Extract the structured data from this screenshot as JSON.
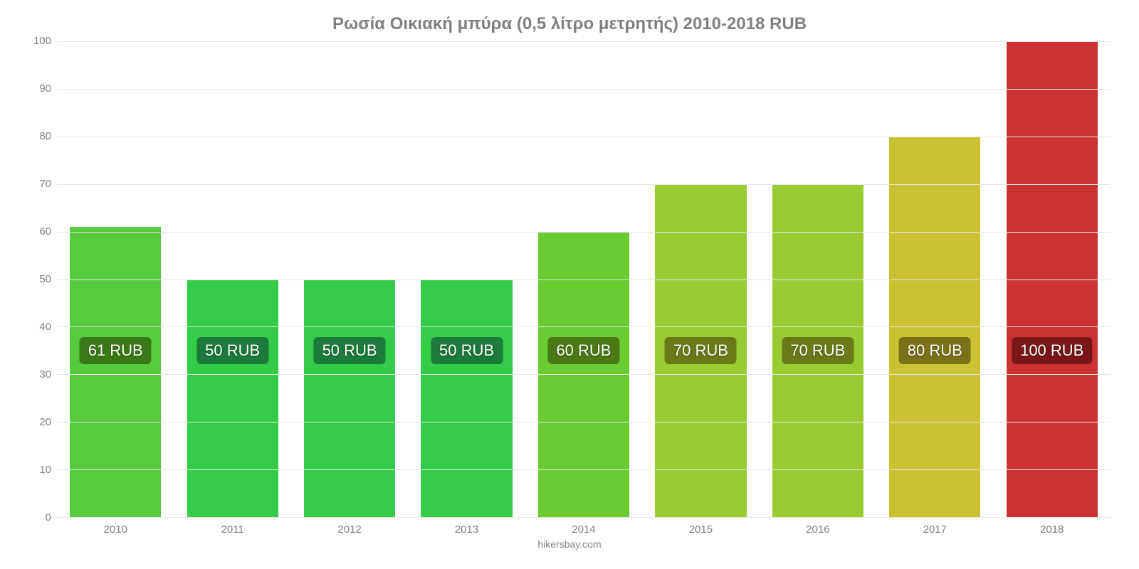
{
  "chart": {
    "type": "bar",
    "title": "Ρωσία Οικιακή μπύρα (0,5 λίτρο μετρητής) 2010-2018 RUB",
    "title_fontsize": 24,
    "title_color": "#808080",
    "footer": "hikersbay.com",
    "footer_fontsize": 14,
    "footer_color": "#808080",
    "background_color": "#ffffff",
    "grid_color": "#e6e6e6",
    "axis_label_color": "#808080",
    "axis_label_fontsize": 15,
    "ylim": [
      0,
      100
    ],
    "ytick_step": 10,
    "yticks": [
      "0",
      "10",
      "20",
      "30",
      "40",
      "50",
      "60",
      "70",
      "80",
      "90",
      "100"
    ],
    "categories": [
      "2010",
      "2011",
      "2012",
      "2013",
      "2014",
      "2015",
      "2016",
      "2017",
      "2018"
    ],
    "values": [
      61,
      50,
      50,
      50,
      60,
      70,
      70,
      80,
      100
    ],
    "value_labels": [
      "61 RUB",
      "50 RUB",
      "50 RUB",
      "50 RUB",
      "60 RUB",
      "70 RUB",
      "70 RUB",
      "80 RUB",
      "100 RUB"
    ],
    "bar_colors": [
      "#55cb3d",
      "#33cb48",
      "#33cb48",
      "#33cb48",
      "#6acb33",
      "#9acb33",
      "#9acb33",
      "#cbc133",
      "#cb3333"
    ],
    "label_bg_colors": [
      "#3a7a16",
      "#1c7a3a",
      "#1c7a3a",
      "#1c7a3a",
      "#4a7a16",
      "#697a16",
      "#697a16",
      "#7a7216",
      "#7a1616"
    ],
    "label_fontsize": 22,
    "label_color": "#ffffff",
    "bar_width_pct": 78,
    "label_vertical_center_value": 35
  }
}
